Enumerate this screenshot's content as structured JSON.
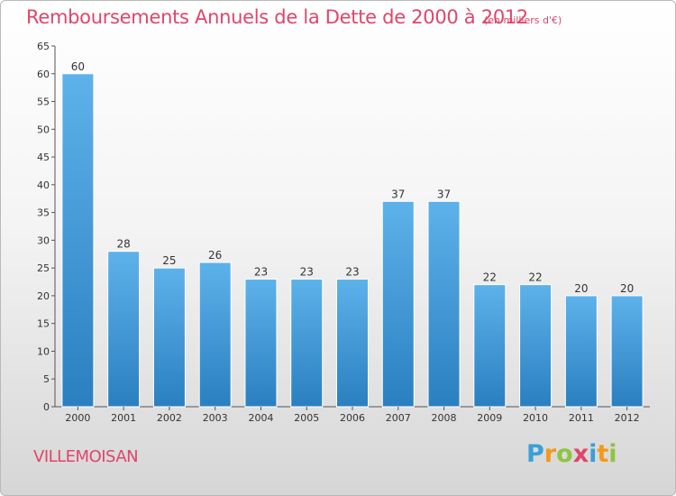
{
  "chart_data": {
    "type": "bar",
    "title": "Remboursements Annuels de la Dette de 2000 à 2012",
    "subtitle": "(en milliers d'€)",
    "categories": [
      "2000",
      "2001",
      "2002",
      "2003",
      "2004",
      "2005",
      "2006",
      "2007",
      "2008",
      "2009",
      "2010",
      "2011",
      "2012"
    ],
    "values": [
      60,
      28,
      25,
      26,
      23,
      23,
      23,
      37,
      37,
      22,
      22,
      20,
      20
    ],
    "ylim": [
      0,
      65
    ],
    "yticks": [
      0,
      5,
      10,
      15,
      20,
      25,
      30,
      35,
      40,
      45,
      50,
      55,
      60,
      65
    ],
    "xlabel": "",
    "ylabel": "",
    "grid": false,
    "bar_color": "#4aa3e0"
  },
  "footer": {
    "town": "VILLEMOISAN",
    "logo_letters": [
      "P",
      "r",
      "o",
      "x",
      "i",
      "t",
      "i"
    ],
    "logo_colors": [
      "#3aa0d8",
      "#f29a1a",
      "#8cc63f",
      "#e0456a",
      "#3aa0d8",
      "#f29a1a",
      "#8cc63f"
    ]
  }
}
